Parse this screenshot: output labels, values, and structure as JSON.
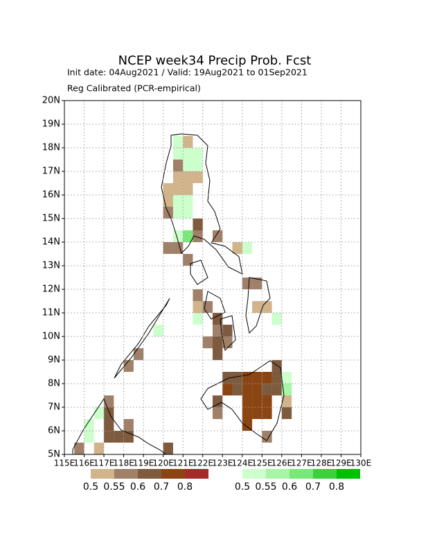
{
  "chart_data": {
    "type": "grid-map",
    "title": "NCEP week34 Precip Prob. Fcst",
    "subtitle": "Init date: 04Aug2021 / Valid: 19Aug2021 to 01Sep2021",
    "subtitle2": "Reg Calibrated (PCR-empirical)",
    "xlim": [
      115,
      130
    ],
    "ylim": [
      5,
      20
    ],
    "cell_size": 0.5,
    "xticks": [
      {
        "value": 115,
        "label": "115E"
      },
      {
        "value": 116,
        "label": "116E"
      },
      {
        "value": 117,
        "label": "117E"
      },
      {
        "value": 118,
        "label": "118E"
      },
      {
        "value": 119,
        "label": "119E"
      },
      {
        "value": 120,
        "label": "120E"
      },
      {
        "value": 121,
        "label": "121E"
      },
      {
        "value": 122,
        "label": "122E"
      },
      {
        "value": 123,
        "label": "123E"
      },
      {
        "value": 124,
        "label": "124E"
      },
      {
        "value": 125,
        "label": "125E"
      },
      {
        "value": 126,
        "label": "126E"
      },
      {
        "value": 127,
        "label": "127E"
      },
      {
        "value": 128,
        "label": "128E"
      },
      {
        "value": 129,
        "label": "129E"
      },
      {
        "value": 130,
        "label": "130E"
      }
    ],
    "yticks": [
      {
        "value": 5,
        "label": "5N"
      },
      {
        "value": 6,
        "label": "6N"
      },
      {
        "value": 7,
        "label": "7N"
      },
      {
        "value": 8,
        "label": "8N"
      },
      {
        "value": 9,
        "label": "9N"
      },
      {
        "value": 10,
        "label": "10N"
      },
      {
        "value": 11,
        "label": "11N"
      },
      {
        "value": 12,
        "label": "12N"
      },
      {
        "value": 13,
        "label": "13N"
      },
      {
        "value": 14,
        "label": "14N"
      },
      {
        "value": 15,
        "label": "15N"
      },
      {
        "value": 16,
        "label": "16N"
      },
      {
        "value": 17,
        "label": "17N"
      },
      {
        "value": 18,
        "label": "18N"
      },
      {
        "value": 19,
        "label": "19N"
      },
      {
        "value": 20,
        "label": "20N"
      }
    ],
    "grid": true,
    "dry_legend": {
      "levels": [
        0.5,
        0.55,
        0.6,
        0.7,
        0.8
      ],
      "colors": [
        "#d2b48c",
        "#a08068",
        "#7e5a3e",
        "#8b4513",
        "#a52a2a"
      ]
    },
    "wet_legend": {
      "levels": [
        0.5,
        0.55,
        0.6,
        0.7,
        0.8
      ],
      "colors": [
        "#ccffcc",
        "#a8f5a8",
        "#78e878",
        "#3cd03c",
        "#00c000"
      ]
    },
    "dry_cells": [
      [
        121.0,
        18.0,
        0.5
      ],
      [
        120.5,
        17.0,
        0.55
      ],
      [
        120.5,
        16.5,
        0.5
      ],
      [
        121.0,
        16.5,
        0.5
      ],
      [
        121.5,
        16.5,
        0.5
      ],
      [
        120.0,
        16.0,
        0.5
      ],
      [
        120.5,
        16.0,
        0.5
      ],
      [
        121.0,
        16.0,
        0.5
      ],
      [
        120.0,
        15.5,
        0.5
      ],
      [
        120.0,
        15.0,
        0.55
      ],
      [
        121.5,
        14.5,
        0.6
      ],
      [
        121.5,
        14.0,
        0.55
      ],
      [
        120.0,
        13.5,
        0.55
      ],
      [
        120.5,
        13.5,
        0.55
      ],
      [
        121.0,
        13.0,
        0.55
      ],
      [
        122.5,
        14.0,
        0.55
      ],
      [
        123.5,
        13.5,
        0.5
      ],
      [
        121.5,
        11.5,
        0.55
      ],
      [
        121.5,
        11.0,
        0.5
      ],
      [
        122.0,
        11.0,
        0.55
      ],
      [
        122.5,
        10.5,
        0.6
      ],
      [
        122.5,
        10.0,
        0.55
      ],
      [
        123.0,
        10.0,
        0.6
      ],
      [
        122.0,
        9.5,
        0.55
      ],
      [
        122.5,
        9.5,
        0.6
      ],
      [
        122.5,
        9.0,
        0.6
      ],
      [
        123.0,
        9.5,
        0.55
      ],
      [
        124.0,
        12.0,
        0.55
      ],
      [
        124.5,
        12.0,
        0.55
      ],
      [
        124.5,
        11.0,
        0.5
      ],
      [
        125.0,
        11.0,
        0.5
      ],
      [
        118.5,
        9.0,
        0.55
      ],
      [
        118.0,
        8.5,
        0.55
      ],
      [
        123.0,
        8.0,
        0.6
      ],
      [
        123.5,
        8.0,
        0.6
      ],
      [
        124.0,
        8.0,
        0.7
      ],
      [
        124.5,
        8.0,
        0.7
      ],
      [
        125.0,
        8.0,
        0.7
      ],
      [
        125.5,
        8.5,
        0.6
      ],
      [
        125.5,
        8.0,
        0.6
      ],
      [
        122.5,
        7.0,
        0.6
      ],
      [
        122.5,
        6.5,
        0.55
      ],
      [
        123.0,
        7.5,
        0.7
      ],
      [
        123.5,
        7.5,
        0.6
      ],
      [
        124.0,
        7.5,
        0.7
      ],
      [
        124.5,
        7.5,
        0.7
      ],
      [
        125.0,
        7.5,
        0.6
      ],
      [
        125.5,
        7.5,
        0.6
      ],
      [
        124.0,
        7.0,
        0.7
      ],
      [
        124.5,
        7.0,
        0.7
      ],
      [
        125.0,
        7.0,
        0.7
      ],
      [
        124.0,
        6.5,
        0.7
      ],
      [
        124.5,
        6.5,
        0.7
      ],
      [
        125.0,
        6.5,
        0.7
      ],
      [
        124.0,
        6.0,
        0.7
      ],
      [
        125.0,
        5.5,
        0.55
      ],
      [
        126.0,
        7.0,
        0.5
      ],
      [
        126.0,
        6.5,
        0.6
      ],
      [
        117.0,
        7.0,
        0.55
      ],
      [
        117.0,
        6.5,
        0.6
      ],
      [
        117.0,
        6.0,
        0.6
      ],
      [
        117.0,
        5.5,
        0.6
      ],
      [
        117.5,
        5.5,
        0.6
      ],
      [
        118.0,
        5.5,
        0.6
      ],
      [
        118.0,
        6.0,
        0.55
      ],
      [
        116.5,
        5.0,
        0.5
      ],
      [
        115.5,
        5.0,
        0.55
      ],
      [
        120.0,
        5.0,
        0.6
      ]
    ],
    "wet_cells": [
      [
        120.5,
        18.0,
        0.5
      ],
      [
        120.5,
        17.5,
        0.5
      ],
      [
        121.0,
        17.5,
        0.5
      ],
      [
        121.5,
        17.5,
        0.5
      ],
      [
        121.0,
        17.0,
        0.5
      ],
      [
        121.5,
        17.0,
        0.5
      ],
      [
        120.5,
        15.5,
        0.5
      ],
      [
        121.0,
        15.5,
        0.5
      ],
      [
        120.5,
        15.0,
        0.5
      ],
      [
        121.0,
        15.0,
        0.5
      ],
      [
        120.5,
        14.0,
        0.5
      ],
      [
        121.0,
        14.0,
        0.6
      ],
      [
        124.0,
        13.5,
        0.5
      ],
      [
        121.5,
        10.5,
        0.5
      ],
      [
        125.5,
        10.5,
        0.5
      ],
      [
        119.5,
        10.0,
        0.5
      ],
      [
        126.0,
        8.0,
        0.5
      ],
      [
        126.0,
        7.5,
        0.55
      ],
      [
        116.5,
        6.5,
        0.5
      ],
      [
        116.0,
        6.0,
        0.5
      ],
      [
        116.0,
        5.5,
        0.5
      ]
    ]
  }
}
